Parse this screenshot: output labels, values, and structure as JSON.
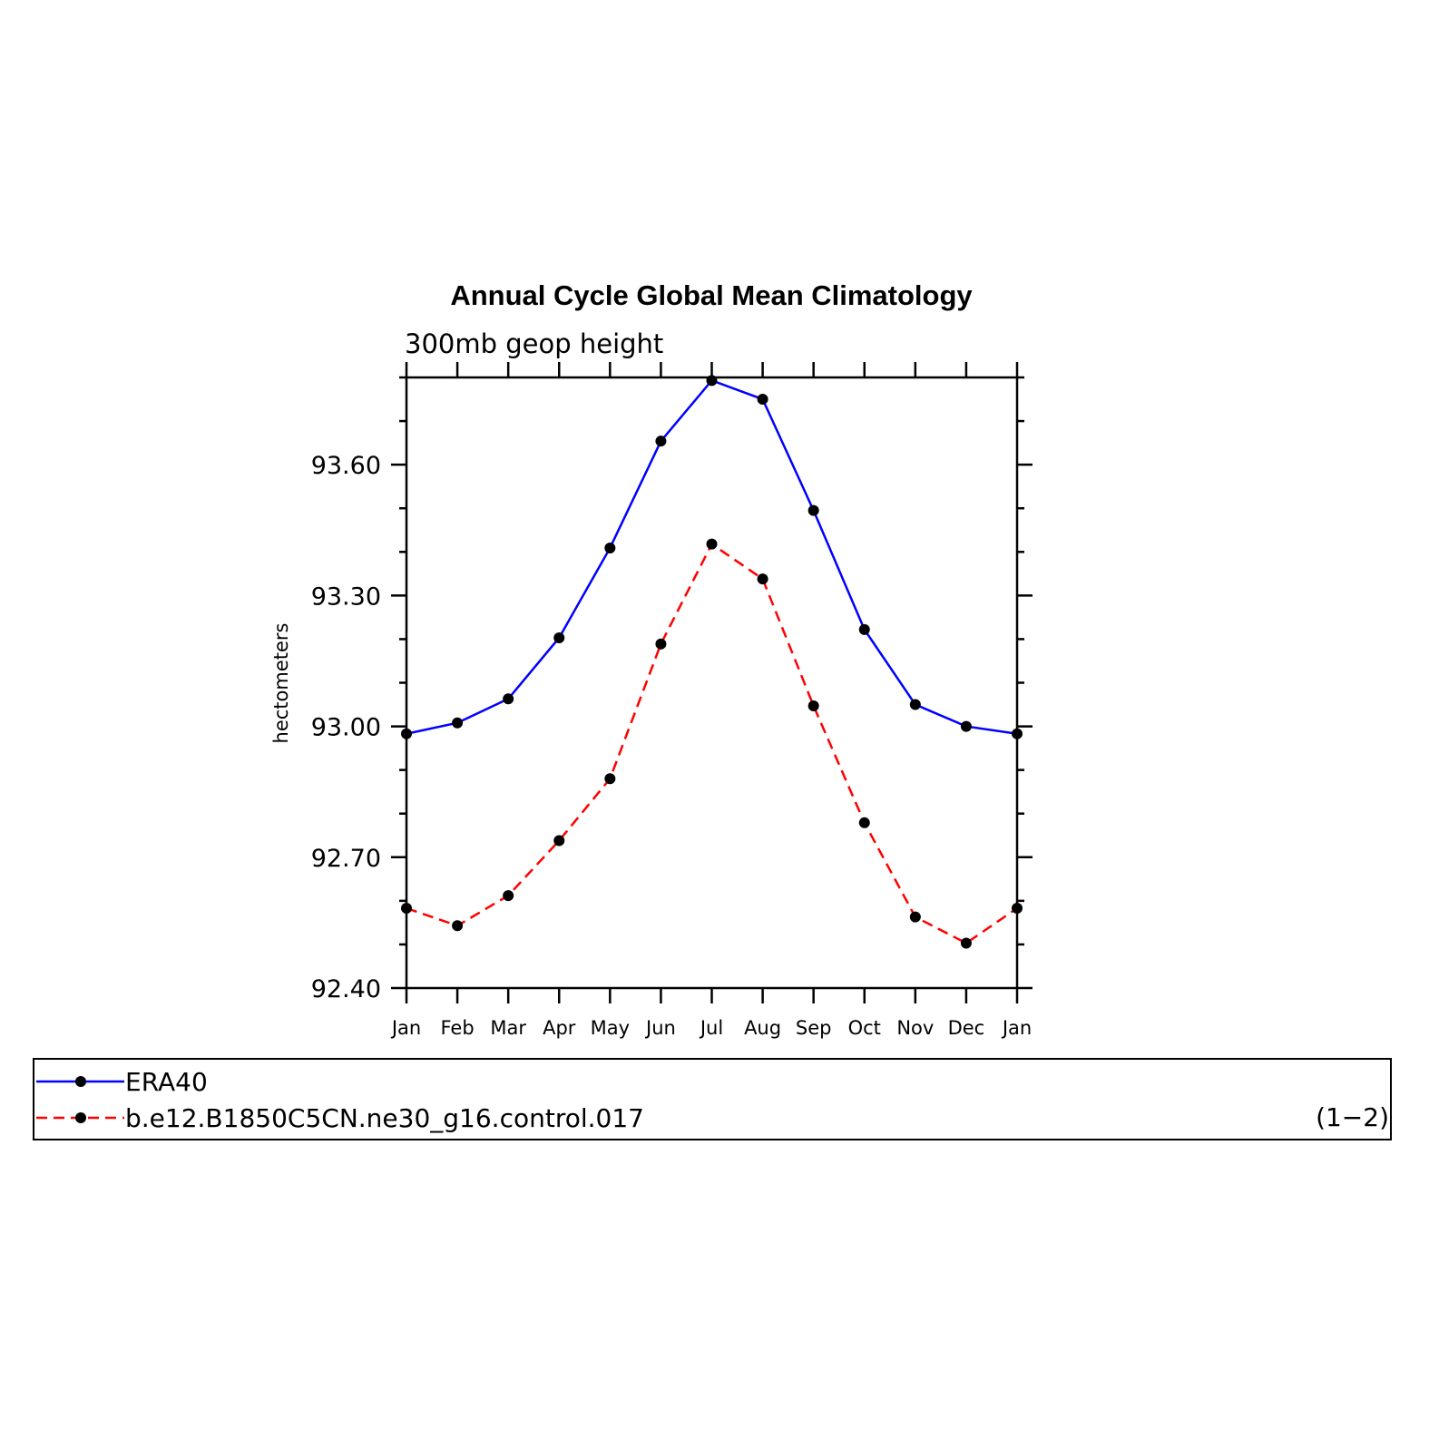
{
  "chart_data": {
    "type": "line",
    "title": "Annual Cycle Global Mean Climatology",
    "subtitle": "300mb geop height",
    "ylabel": "hectometers",
    "xlabel": "",
    "categories": [
      "Jan",
      "Feb",
      "Mar",
      "Apr",
      "May",
      "Jun",
      "Jul",
      "Aug",
      "Sep",
      "Oct",
      "Nov",
      "Dec",
      "Jan"
    ],
    "ylim": [
      92.4,
      93.8
    ],
    "yticks": [
      92.4,
      92.7,
      93.0,
      93.3,
      93.6
    ],
    "ytick_labels": [
      "92.40",
      "92.70",
      "93.00",
      "93.30",
      "93.60"
    ],
    "grid": false,
    "legend": {
      "placement": "bottom",
      "tag": "(1−2)"
    },
    "series": [
      {
        "name": "ERA40",
        "color": "#0000ff",
        "dash": "solid",
        "values": [
          92.983,
          93.008,
          93.063,
          93.203,
          93.409,
          93.654,
          93.793,
          93.75,
          93.495,
          93.222,
          93.05,
          93.0,
          92.983
        ]
      },
      {
        "name": "b.e12.B1850C5CN.ne30_g16.control.017",
        "color": "#ff0000",
        "dash": "dashed",
        "values": [
          92.583,
          92.543,
          92.612,
          92.738,
          92.88,
          93.189,
          93.418,
          93.338,
          93.047,
          92.779,
          92.563,
          92.503,
          92.583
        ]
      }
    ]
  }
}
